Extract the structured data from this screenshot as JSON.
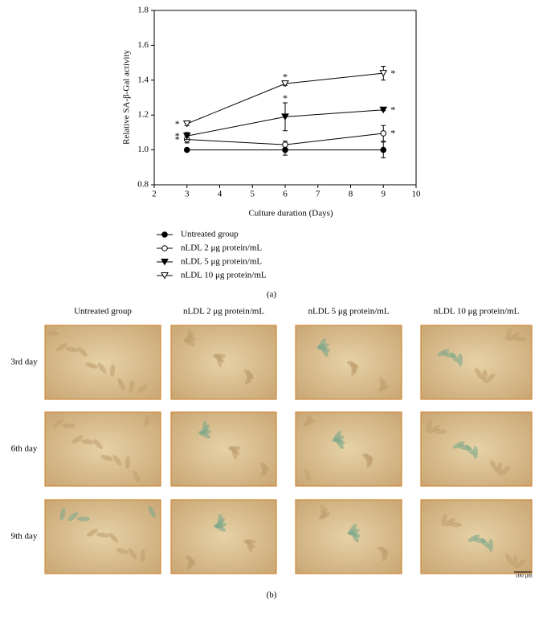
{
  "chart_data": {
    "type": "line",
    "y_label": "Relative SA-β-Gal activity",
    "x_label": "Culture duration (Days)",
    "xlim": [
      2,
      10
    ],
    "xticks": [
      2,
      3,
      4,
      5,
      6,
      7,
      8,
      9,
      10
    ],
    "ylim": [
      0.8,
      1.8
    ],
    "yticks": [
      0.8,
      {
        "value": 1.0,
        "label": "1.0"
      },
      1.2,
      1.4,
      1.6,
      1.8
    ],
    "x": [
      3,
      6,
      9
    ],
    "series": [
      {
        "name": "Untreated group",
        "color": "#000000",
        "marker": "circle",
        "filled": true,
        "values": [
          1.0,
          1.0,
          1.0
        ],
        "errors": [
          0.005,
          0.03,
          0.045
        ],
        "significance": [
          null,
          null,
          null
        ]
      },
      {
        "name": "nLDL 2 μg protein/mL",
        "color": "#000000",
        "marker": "circle",
        "filled": false,
        "values": [
          1.06,
          1.03,
          1.095
        ],
        "errors": [
          0.02,
          0.02,
          0.045
        ],
        "significance": [
          "*",
          null,
          "*"
        ]
      },
      {
        "name": "nLDL 5 μg protein/mL",
        "color": "#000000",
        "marker": "triangle-down",
        "filled": true,
        "values": [
          1.08,
          1.19,
          1.23
        ],
        "errors": [
          0.02,
          0.08,
          0.005
        ],
        "significance": [
          "*",
          "*",
          "*"
        ]
      },
      {
        "name": "nLDL 10 μg protein/mL",
        "color": "#000000",
        "marker": "triangle-down",
        "filled": false,
        "values": [
          1.15,
          1.38,
          1.44
        ],
        "errors": [
          0.01,
          0.01,
          0.04
        ],
        "significance": [
          "*",
          "*",
          "*"
        ]
      }
    ],
    "panel_label": "(a)"
  },
  "micrographs": {
    "columns": [
      "Untreated group",
      "nLDL 2 μg protein/mL",
      "nLDL 5 μg protein/mL",
      "nLDL 10 μg protein/mL"
    ],
    "rows": [
      "3rd day",
      "6th day",
      "9th day"
    ],
    "scale_bar": "100 μm",
    "panel_label": "(b)"
  }
}
